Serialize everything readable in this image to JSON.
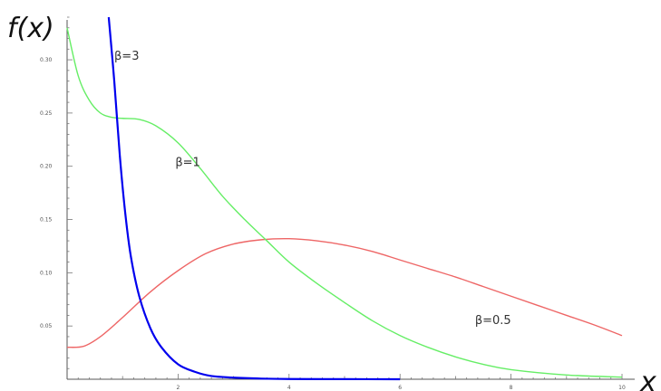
{
  "chart_data": {
    "type": "line",
    "title": "",
    "xlabel": "x",
    "ylabel": "f(x)",
    "xlim": [
      0,
      10
    ],
    "ylim": [
      0,
      0.34
    ],
    "xticks": [
      2,
      4,
      6,
      8,
      10
    ],
    "yticks": [
      0.05,
      0.1,
      0.15,
      0.2,
      0.25,
      0.3
    ],
    "xtick_labels": [
      "2",
      "4",
      "6",
      "8",
      "10"
    ],
    "ytick_labels": [
      "0.05",
      "0.10",
      "0.15",
      "0.20",
      "0.25",
      "0.30"
    ],
    "grid": false,
    "legend": "none",
    "series": [
      {
        "name": "β=3",
        "color": "#0000ee",
        "x": [
          0.75,
          0.85,
          0.95,
          1.05,
          1.15,
          1.3,
          1.5,
          1.7,
          2.0,
          2.3,
          2.6,
          3.0,
          3.5,
          4.0,
          5.0,
          6.0
        ],
        "y": [
          0.34,
          0.28,
          0.21,
          0.155,
          0.115,
          0.078,
          0.048,
          0.03,
          0.014,
          0.007,
          0.003,
          0.0015,
          0.0006,
          0.0002,
          0.0001,
          0.0
        ]
      },
      {
        "name": "β=1",
        "color": "#66ee66",
        "x": [
          0.0,
          0.2,
          0.4,
          0.6,
          0.8,
          1.0,
          1.3,
          1.6,
          2.0,
          2.4,
          2.8,
          3.2,
          3.6,
          4.0,
          4.5,
          5.0,
          5.5,
          6.0,
          6.5,
          7.0,
          7.5,
          8.0,
          9.0,
          10.0
        ],
        "y": [
          0.33,
          0.285,
          0.262,
          0.25,
          0.246,
          0.245,
          0.244,
          0.238,
          0.222,
          0.198,
          0.172,
          0.15,
          0.13,
          0.11,
          0.09,
          0.072,
          0.055,
          0.041,
          0.03,
          0.021,
          0.014,
          0.009,
          0.004,
          0.002
        ]
      },
      {
        "name": "β=0.5",
        "color": "#ee6666",
        "x": [
          0.0,
          0.3,
          0.6,
          1.0,
          1.5,
          2.0,
          2.5,
          3.0,
          3.5,
          4.0,
          4.5,
          5.0,
          5.5,
          6.0,
          6.5,
          7.0,
          7.5,
          8.0,
          8.5,
          9.0,
          9.5,
          10.0
        ],
        "y": [
          0.03,
          0.031,
          0.04,
          0.058,
          0.082,
          0.102,
          0.118,
          0.127,
          0.131,
          0.132,
          0.13,
          0.126,
          0.12,
          0.112,
          0.104,
          0.096,
          0.087,
          0.078,
          0.069,
          0.06,
          0.051,
          0.041
        ]
      }
    ],
    "annotations": [
      {
        "text": "β=3",
        "x": 0.85,
        "y": 0.3
      },
      {
        "text": "β=1",
        "x": 1.95,
        "y": 0.2
      },
      {
        "text": "β=0.5",
        "x": 7.35,
        "y": 0.052
      }
    ]
  }
}
